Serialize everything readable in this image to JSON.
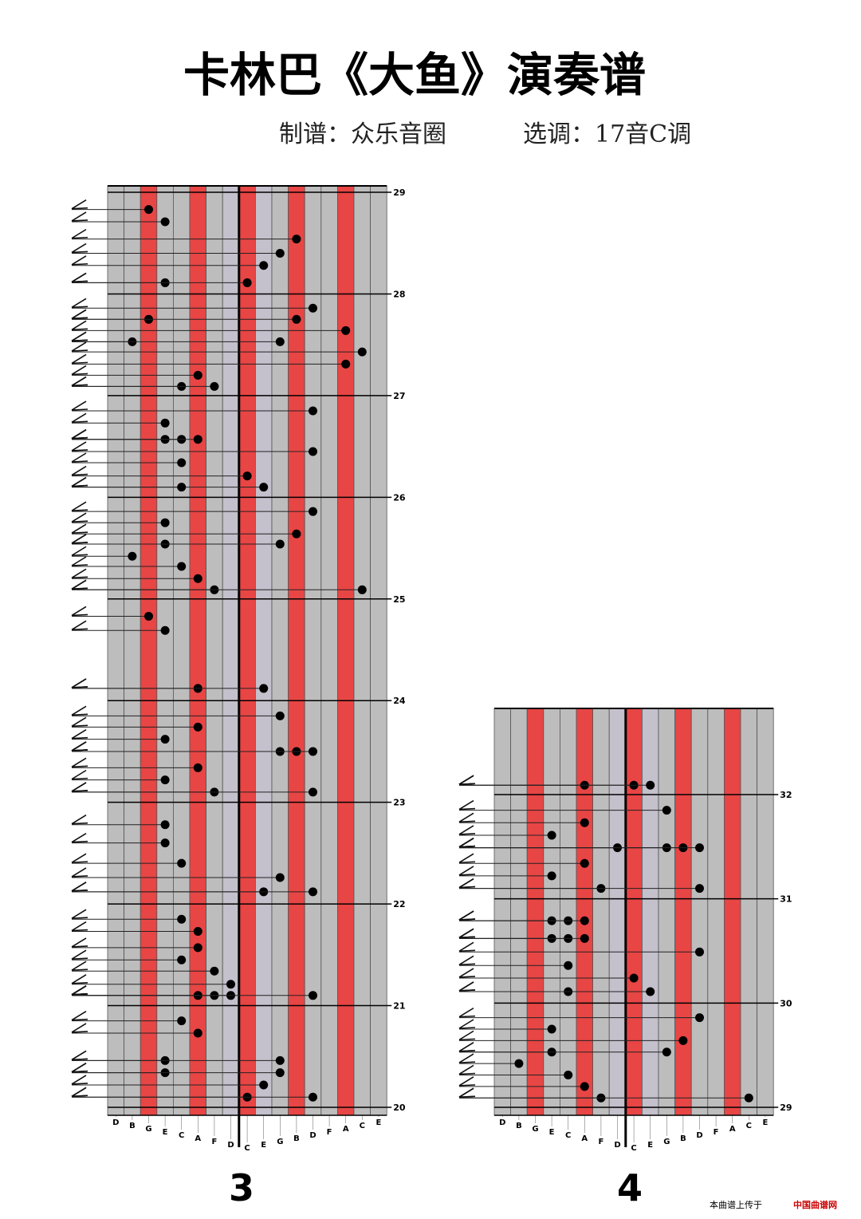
{
  "title": "卡林巴《大鱼》演奏谱",
  "credits": {
    "arranger": "制谱：众乐音圈",
    "key": "选调：17音C调"
  },
  "panels": [
    {
      "page": "3",
      "keys": [
        "D",
        "B",
        "G",
        "E",
        "C",
        "A",
        "F",
        "D",
        "C",
        "E",
        "G",
        "B",
        "D",
        "F",
        "A",
        "C",
        "E"
      ],
      "measures": [
        29,
        28,
        27,
        26,
        25,
        24,
        23,
        22,
        21,
        20
      ],
      "notes": [
        [
          28.83,
          2
        ],
        [
          28.71,
          3
        ],
        [
          28.54,
          11
        ],
        [
          28.4,
          10
        ],
        [
          28.28,
          9
        ],
        [
          28.11,
          3
        ],
        [
          28.11,
          8
        ],
        [
          27.86,
          12
        ],
        [
          27.75,
          2
        ],
        [
          27.75,
          11
        ],
        [
          27.64,
          14
        ],
        [
          27.53,
          1
        ],
        [
          27.53,
          10
        ],
        [
          27.43,
          15
        ],
        [
          27.31,
          14
        ],
        [
          27.2,
          5
        ],
        [
          27.09,
          4
        ],
        [
          27.09,
          6
        ],
        [
          26.85,
          12
        ],
        [
          26.73,
          3
        ],
        [
          26.57,
          3
        ],
        [
          26.57,
          4
        ],
        [
          26.57,
          5
        ],
        [
          26.45,
          12
        ],
        [
          26.34,
          4
        ],
        [
          26.21,
          8
        ],
        [
          26.1,
          9
        ],
        [
          26.1,
          4
        ],
        [
          25.86,
          12
        ],
        [
          25.75,
          3
        ],
        [
          25.64,
          11
        ],
        [
          25.54,
          3
        ],
        [
          25.54,
          10
        ],
        [
          25.42,
          1
        ],
        [
          25.32,
          4
        ],
        [
          25.2,
          5
        ],
        [
          25.09,
          6
        ],
        [
          25.09,
          15
        ],
        [
          24.83,
          2
        ],
        [
          24.69,
          3
        ],
        [
          24.12,
          5
        ],
        [
          24.12,
          9
        ],
        [
          23.85,
          10
        ],
        [
          23.74,
          5
        ],
        [
          23.62,
          3
        ],
        [
          23.5,
          10
        ],
        [
          23.5,
          11
        ],
        [
          23.5,
          12
        ],
        [
          23.34,
          5
        ],
        [
          23.22,
          3
        ],
        [
          23.1,
          6
        ],
        [
          23.1,
          12
        ],
        [
          22.78,
          3
        ],
        [
          22.6,
          3
        ],
        [
          22.4,
          4
        ],
        [
          22.26,
          10
        ],
        [
          22.12,
          9
        ],
        [
          22.12,
          12
        ],
        [
          21.85,
          4
        ],
        [
          21.73,
          5
        ],
        [
          21.57,
          5
        ],
        [
          21.45,
          4
        ],
        [
          21.34,
          6
        ],
        [
          21.21,
          7
        ],
        [
          21.1,
          5
        ],
        [
          21.1,
          6
        ],
        [
          21.1,
          7
        ],
        [
          21.1,
          12
        ],
        [
          20.85,
          4
        ],
        [
          20.73,
          5
        ],
        [
          20.46,
          3
        ],
        [
          20.46,
          10
        ],
        [
          20.34,
          3
        ],
        [
          20.34,
          10
        ],
        [
          20.22,
          9
        ],
        [
          20.1,
          8
        ],
        [
          20.1,
          12
        ]
      ]
    },
    {
      "page": "4",
      "keys": [
        "D",
        "B",
        "G",
        "E",
        "C",
        "A",
        "F",
        "D",
        "C",
        "E",
        "G",
        "B",
        "D",
        "F",
        "A",
        "C",
        "E"
      ],
      "measures": [
        32,
        31,
        30,
        29
      ],
      "notes": [
        [
          32.09,
          5
        ],
        [
          32.09,
          8
        ],
        [
          32.09,
          9
        ],
        [
          31.85,
          10
        ],
        [
          31.73,
          5
        ],
        [
          31.61,
          3
        ],
        [
          31.49,
          7
        ],
        [
          31.49,
          10
        ],
        [
          31.49,
          11
        ],
        [
          31.49,
          12
        ],
        [
          31.34,
          5
        ],
        [
          31.22,
          3
        ],
        [
          31.1,
          6
        ],
        [
          31.1,
          12
        ],
        [
          30.79,
          3
        ],
        [
          30.79,
          4
        ],
        [
          30.79,
          5
        ],
        [
          30.62,
          3
        ],
        [
          30.62,
          4
        ],
        [
          30.62,
          5
        ],
        [
          30.49,
          12
        ],
        [
          30.36,
          4
        ],
        [
          30.24,
          8
        ],
        [
          30.11,
          4
        ],
        [
          30.11,
          9
        ],
        [
          29.86,
          12
        ],
        [
          29.75,
          3
        ],
        [
          29.64,
          11
        ],
        [
          29.53,
          3
        ],
        [
          29.53,
          10
        ],
        [
          29.42,
          1
        ],
        [
          29.31,
          4
        ],
        [
          29.2,
          5
        ],
        [
          29.09,
          6
        ],
        [
          29.09,
          15
        ]
      ]
    }
  ],
  "footer": {
    "text": "本曲谱上传于",
    "site": "中国曲谱网"
  }
}
